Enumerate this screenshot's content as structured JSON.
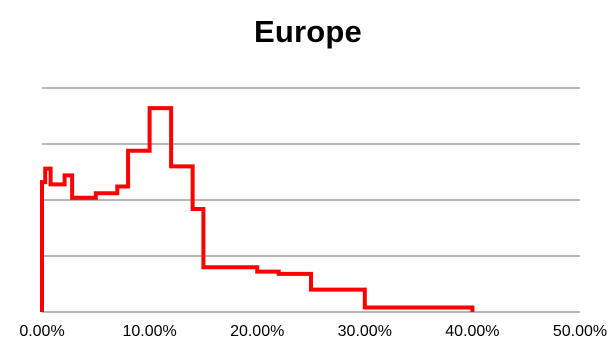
{
  "chart_data": {
    "type": "line",
    "title": "Europe",
    "xlabel": "",
    "ylabel": "",
    "xlim": [
      0,
      0.5
    ],
    "ylim": [
      0,
      1
    ],
    "x_tick_values": [
      0,
      0.1,
      0.2,
      0.3,
      0.4,
      0.5
    ],
    "x_tick_labels": [
      "0.00%",
      "10.00%",
      "20.00%",
      "30.00%",
      "40.00%",
      "50.00%"
    ],
    "y_gridlines": [
      0.25,
      0.5,
      0.75,
      1.0
    ],
    "y_axis_labels_shown": false,
    "grid": true,
    "legend": "none",
    "series_color": "#ff0000",
    "series": [
      {
        "points": [
          [
            0,
            0
          ],
          [
            0,
            0.58
          ],
          [
            0.003,
            0.58
          ],
          [
            0.003,
            0.64
          ],
          [
            0.008,
            0.64
          ],
          [
            0.008,
            0.57
          ],
          [
            0.021,
            0.57
          ],
          [
            0.021,
            0.61
          ],
          [
            0.028,
            0.61
          ],
          [
            0.028,
            0.51
          ],
          [
            0.05,
            0.51
          ],
          [
            0.05,
            0.53
          ],
          [
            0.07,
            0.53
          ],
          [
            0.07,
            0.56
          ],
          [
            0.08,
            0.56
          ],
          [
            0.08,
            0.72
          ],
          [
            0.1,
            0.72
          ],
          [
            0.1,
            0.91
          ],
          [
            0.12,
            0.91
          ],
          [
            0.12,
            0.65
          ],
          [
            0.14,
            0.65
          ],
          [
            0.14,
            0.46
          ],
          [
            0.15,
            0.46
          ],
          [
            0.15,
            0.2
          ],
          [
            0.2,
            0.2
          ],
          [
            0.2,
            0.18
          ],
          [
            0.22,
            0.18
          ],
          [
            0.22,
            0.17
          ],
          [
            0.25,
            0.17
          ],
          [
            0.25,
            0.1
          ],
          [
            0.3,
            0.1
          ],
          [
            0.3,
            0.02
          ],
          [
            0.4,
            0.02
          ],
          [
            0.4,
            0
          ]
        ]
      }
    ]
  }
}
